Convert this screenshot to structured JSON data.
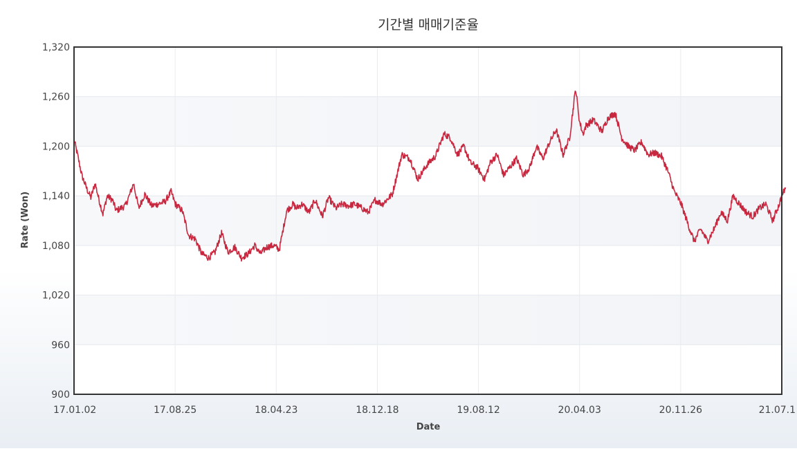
{
  "chart_data": {
    "type": "line",
    "title": "기간별 매매기준율",
    "xlabel": "Date",
    "ylabel": "Rate (Won)",
    "ylim": [
      900,
      1320
    ],
    "yticks": [
      "1,320",
      "1,260",
      "1,200",
      "1,140",
      "1,080",
      "1,020",
      "960",
      "900"
    ],
    "ytick_values": [
      1320,
      1260,
      1200,
      1140,
      1080,
      1020,
      960,
      900
    ],
    "xticks": [
      "17.01.02",
      "17.08.25",
      "18.04.23",
      "18.12.18",
      "19.08.12",
      "20.04.03",
      "20.11.26",
      "21.07.1"
    ],
    "grid": true,
    "line_color": "#c8283f",
    "series": [
      {
        "x": [
          "17.01.02",
          "17.01.10",
          "17.01.20",
          "17.02.01",
          "17.02.10",
          "17.02.20",
          "17.03.01",
          "17.03.10",
          "17.03.20",
          "17.04.01",
          "17.04.10",
          "17.04.20",
          "17.05.01",
          "17.05.10",
          "17.05.20",
          "17.06.01",
          "17.06.15",
          "17.07.01",
          "17.07.15",
          "17.08.01",
          "17.08.15",
          "17.08.25",
          "17.09.10",
          "17.09.25",
          "17.10.10",
          "17.10.25",
          "17.11.10",
          "17.11.25",
          "17.12.10",
          "17.12.25",
          "18.01.10",
          "18.01.25",
          "18.02.10",
          "18.02.25",
          "18.03.10",
          "18.03.25",
          "18.04.10",
          "18.04.23",
          "18.05.10",
          "18.05.25",
          "18.06.01",
          "18.06.15",
          "18.07.01",
          "18.07.15",
          "18.08.01",
          "18.08.15",
          "18.09.01",
          "18.09.15",
          "18.10.01",
          "18.10.15",
          "18.11.01",
          "18.11.15",
          "18.12.01",
          "18.12.18",
          "19.01.10",
          "19.02.01",
          "19.02.20",
          "19.03.10",
          "19.04.01",
          "19.04.20",
          "19.05.10",
          "19.05.25",
          "19.06.10",
          "19.06.25",
          "19.07.10",
          "19.07.25",
          "19.08.12",
          "19.08.25",
          "19.09.10",
          "19.09.25",
          "19.10.10",
          "19.10.25",
          "19.11.10",
          "19.11.25",
          "19.12.10",
          "19.12.25",
          "20.01.10",
          "20.01.25",
          "20.02.10",
          "20.02.25",
          "20.03.10",
          "20.03.19",
          "20.03.27",
          "20.04.03",
          "20.04.20",
          "20.05.10",
          "20.05.25",
          "20.06.10",
          "20.06.25",
          "20.07.10",
          "20.07.25",
          "20.08.10",
          "20.08.25",
          "20.09.10",
          "20.09.25",
          "20.10.10",
          "20.10.25",
          "20.11.10",
          "20.11.26",
          "20.12.10",
          "20.12.25",
          "21.01.10",
          "21.01.25",
          "21.02.10",
          "21.02.25",
          "21.03.10",
          "21.03.25",
          "21.04.10",
          "21.04.25",
          "21.05.10",
          "21.05.25",
          "21.06.10",
          "21.06.25",
          "21.07.01",
          "21.07.10"
        ],
        "values": [
          1208,
          1190,
          1165,
          1148,
          1138,
          1155,
          1135,
          1118,
          1140,
          1135,
          1122,
          1125,
          1128,
          1140,
          1155,
          1125,
          1142,
          1128,
          1130,
          1133,
          1145,
          1130,
          1122,
          1092,
          1088,
          1070,
          1065,
          1072,
          1095,
          1072,
          1078,
          1065,
          1070,
          1080,
          1070,
          1078,
          1080,
          1075,
          1122,
          1130,
          1125,
          1130,
          1120,
          1135,
          1115,
          1138,
          1125,
          1130,
          1128,
          1130,
          1125,
          1120,
          1135,
          1130,
          1142,
          1190,
          1185,
          1160,
          1178,
          1188,
          1215,
          1210,
          1190,
          1200,
          1180,
          1175,
          1160,
          1180,
          1190,
          1165,
          1175,
          1185,
          1165,
          1175,
          1200,
          1185,
          1205,
          1220,
          1190,
          1210,
          1270,
          1230,
          1215,
          1225,
          1232,
          1218,
          1235,
          1240,
          1210,
          1200,
          1195,
          1205,
          1190,
          1192,
          1188,
          1170,
          1145,
          1130,
          1105,
          1085,
          1100,
          1085,
          1100,
          1120,
          1110,
          1140,
          1130,
          1120,
          1115,
          1125,
          1130,
          1110,
          1130,
          1140,
          1150
        ]
      }
    ]
  }
}
